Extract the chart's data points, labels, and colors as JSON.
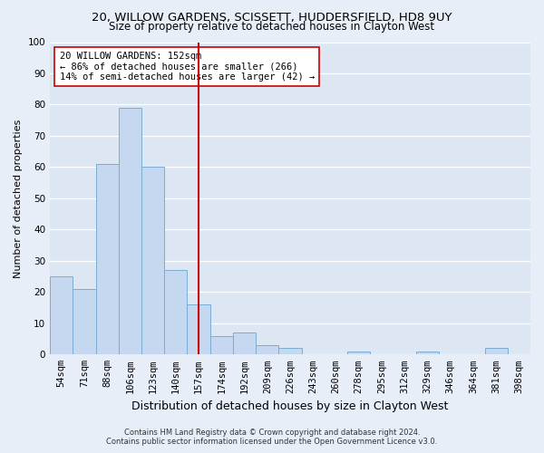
{
  "title1": "20, WILLOW GARDENS, SCISSETT, HUDDERSFIELD, HD8 9UY",
  "title2": "Size of property relative to detached houses in Clayton West",
  "xlabel": "Distribution of detached houses by size in Clayton West",
  "ylabel": "Number of detached properties",
  "annotation_line1": "20 WILLOW GARDENS: 152sqm",
  "annotation_line2": "← 86% of detached houses are smaller (266)",
  "annotation_line3": "14% of semi-detached houses are larger (42) →",
  "footer1": "Contains HM Land Registry data © Crown copyright and database right 2024.",
  "footer2": "Contains public sector information licensed under the Open Government Licence v3.0.",
  "bins": [
    "54sqm",
    "71sqm",
    "88sqm",
    "106sqm",
    "123sqm",
    "140sqm",
    "157sqm",
    "174sqm",
    "192sqm",
    "209sqm",
    "226sqm",
    "243sqm",
    "260sqm",
    "278sqm",
    "295sqm",
    "312sqm",
    "329sqm",
    "346sqm",
    "364sqm",
    "381sqm",
    "398sqm"
  ],
  "values": [
    25,
    21,
    61,
    79,
    60,
    27,
    16,
    6,
    7,
    3,
    2,
    0,
    0,
    1,
    0,
    0,
    1,
    0,
    0,
    2,
    0
  ],
  "bar_color": "#c5d8ef",
  "bar_edge_color": "#7aadd4",
  "vline_x": 6,
  "vline_color": "#cc0000",
  "annotation_box_edge": "#cc0000",
  "fig_bg_color": "#e8eef8",
  "plot_bg_color": "#dce7f3",
  "ylim": [
    0,
    100
  ],
  "yticks": [
    0,
    10,
    20,
    30,
    40,
    50,
    60,
    70,
    80,
    90,
    100
  ],
  "title_fontsize": 9.5,
  "subtitle_fontsize": 8.5,
  "tick_fontsize": 7.5,
  "ylabel_fontsize": 8,
  "xlabel_fontsize": 9,
  "annotation_fontsize": 7.5,
  "footer_fontsize": 6
}
